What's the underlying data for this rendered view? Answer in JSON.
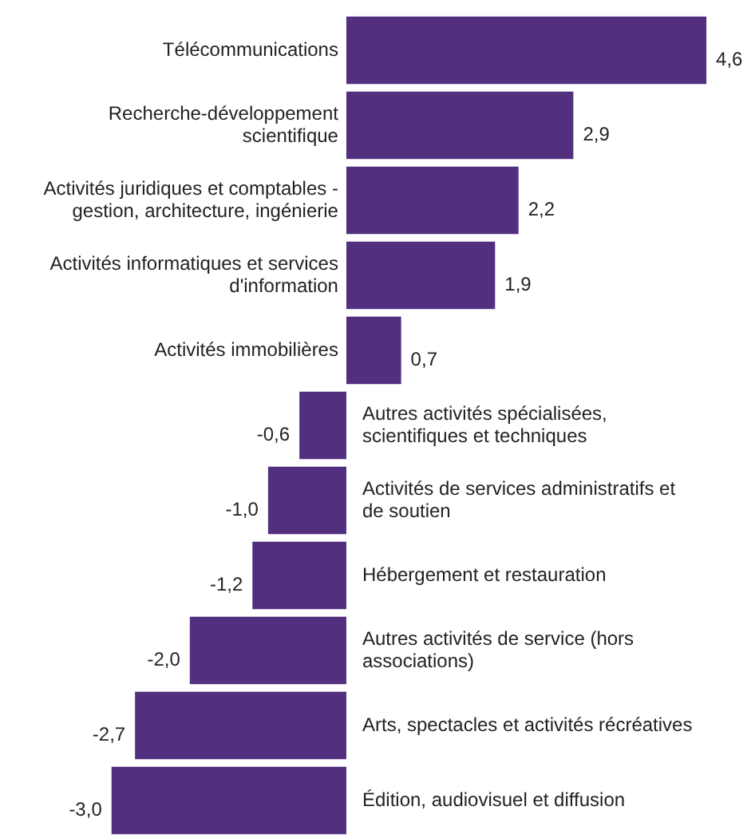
{
  "chart_data": {
    "type": "bar",
    "orientation": "horizontal",
    "categories": [
      "Télécommunications",
      "Recherche-développement scientifique",
      "Activités juridiques et comptables - gestion, architecture, ingénierie",
      "Activités informatiques et services d'information",
      "Activités immobilières",
      "Autres activités spécialisées, scientifiques et techniques",
      "Activités de services administratifs et de soutien",
      "Hébergement et restauration",
      "Autres activités de service (hors associations)",
      "Arts, spectacles et activités récréatives",
      "Édition, audiovisuel et diffusion"
    ],
    "values": [
      4.6,
      2.9,
      2.2,
      1.9,
      0.7,
      -0.6,
      -1.0,
      -1.2,
      -2.0,
      -2.7,
      -3.0
    ],
    "value_labels": [
      "4,6",
      "2,9",
      "2,2",
      "1,9",
      "0,7",
      "-0,6",
      "-1,0",
      "-1,2",
      "-2,0",
      "-2,7",
      "-3,0"
    ],
    "color": "#52307f",
    "tick_labels": false
  }
}
